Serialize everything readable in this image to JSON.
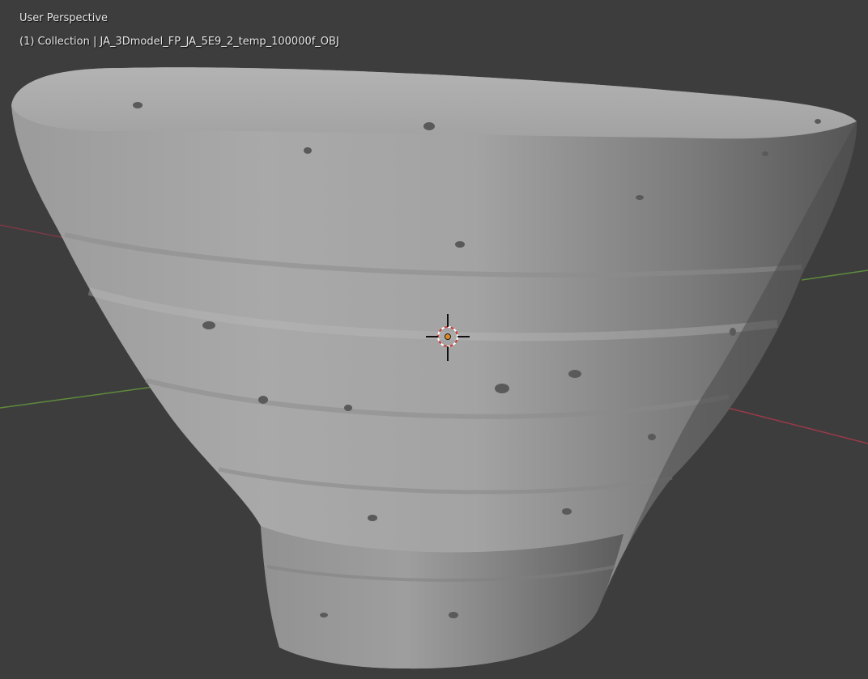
{
  "viewport": {
    "view_name": "User Perspective",
    "collection_info": "(1) Collection | JA_3Dmodel_FP_JA_5E9_2_temp_100000f_OBJ"
  },
  "colors": {
    "background": "#3d3d3d",
    "x_axis": "#9c3a4a",
    "y_axis": "#5f8a3c",
    "model": "#8f8f8f",
    "origin": "#e08a24"
  },
  "icons": [
    "3d-cursor-icon",
    "object-origin-icon"
  ]
}
